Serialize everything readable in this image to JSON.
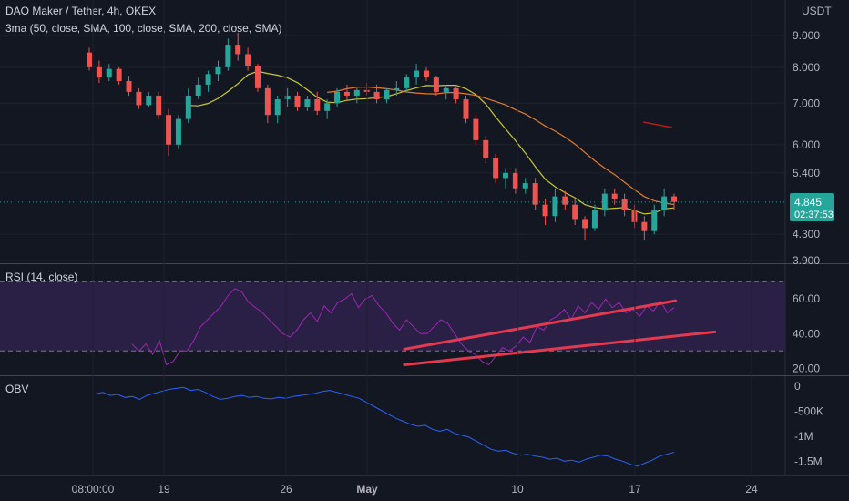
{
  "header": {
    "title": "DAO Maker / Tether, 4h, OKEX",
    "indicator": "3ma (50, close, SMA, 100, close, SMA, 200, close, SMA)",
    "currency": "USDT"
  },
  "badge": {
    "price": "4.845",
    "countdown": "02:37:53"
  },
  "panes": {
    "rsi_label": "RSI (14, close)",
    "obv_label": "OBV"
  },
  "colors": {
    "background": "#131722",
    "candle_up": "#26a69a",
    "candle_down": "#ef5350",
    "ma50": "#c8c832",
    "ma100": "#e07b2e",
    "ma200": "#b71c1c",
    "rsi_line": "#9c27b0",
    "rsi_band": "#2a1f45",
    "trendline": "#e53950",
    "obv_line": "#2962ff",
    "badge": "#26a69a"
  },
  "chart_data": [
    {
      "type": "candlestick",
      "title": "DAO Maker / Tether, 4h, OKEX",
      "x_tick_labels": [
        "08:00:00",
        "19",
        "26",
        "May",
        "10",
        "17",
        "24"
      ],
      "y_tick_labels": [
        "9.000",
        "8.000",
        "7.000",
        "6.000",
        "5.400",
        "4.845",
        "4.300",
        "3.900"
      ],
      "y_scale": "log",
      "ylim": [
        3.9,
        9.6
      ],
      "last_price": 4.845,
      "candles": [
        {
          "o": 8.45,
          "h": 8.6,
          "l": 7.9,
          "c": 8.0
        },
        {
          "o": 8.0,
          "h": 8.2,
          "l": 7.55,
          "c": 7.7
        },
        {
          "o": 7.7,
          "h": 8.1,
          "l": 7.6,
          "c": 7.95
        },
        {
          "o": 7.95,
          "h": 8.0,
          "l": 7.5,
          "c": 7.6
        },
        {
          "o": 7.6,
          "h": 7.75,
          "l": 7.2,
          "c": 7.3
        },
        {
          "o": 7.3,
          "h": 7.4,
          "l": 6.85,
          "c": 6.95
        },
        {
          "o": 6.95,
          "h": 7.3,
          "l": 6.9,
          "c": 7.2
        },
        {
          "o": 7.2,
          "h": 7.3,
          "l": 6.6,
          "c": 6.7
        },
        {
          "o": 6.7,
          "h": 6.85,
          "l": 5.75,
          "c": 6.0
        },
        {
          "o": 6.0,
          "h": 6.7,
          "l": 5.9,
          "c": 6.6
        },
        {
          "o": 6.6,
          "h": 7.4,
          "l": 6.5,
          "c": 7.2
        },
        {
          "o": 7.2,
          "h": 7.7,
          "l": 7.1,
          "c": 7.5
        },
        {
          "o": 7.5,
          "h": 7.9,
          "l": 7.3,
          "c": 7.8
        },
        {
          "o": 7.8,
          "h": 8.2,
          "l": 7.6,
          "c": 8.0
        },
        {
          "o": 8.0,
          "h": 8.9,
          "l": 7.9,
          "c": 8.7
        },
        {
          "o": 8.7,
          "h": 9.1,
          "l": 8.2,
          "c": 8.4
        },
        {
          "o": 8.4,
          "h": 8.6,
          "l": 7.9,
          "c": 8.05
        },
        {
          "o": 8.05,
          "h": 8.1,
          "l": 7.3,
          "c": 7.4
        },
        {
          "o": 7.4,
          "h": 7.5,
          "l": 6.5,
          "c": 6.7
        },
        {
          "o": 6.7,
          "h": 7.2,
          "l": 6.5,
          "c": 7.1
        },
        {
          "o": 7.1,
          "h": 7.4,
          "l": 6.9,
          "c": 7.2
        },
        {
          "o": 7.2,
          "h": 7.3,
          "l": 6.8,
          "c": 6.9
        },
        {
          "o": 6.9,
          "h": 7.2,
          "l": 6.8,
          "c": 7.1
        },
        {
          "o": 7.1,
          "h": 7.3,
          "l": 6.7,
          "c": 6.8
        },
        {
          "o": 6.8,
          "h": 7.1,
          "l": 6.6,
          "c": 7.0
        },
        {
          "o": 7.0,
          "h": 7.4,
          "l": 6.9,
          "c": 7.3
        },
        {
          "o": 7.3,
          "h": 7.5,
          "l": 7.1,
          "c": 7.2
        },
        {
          "o": 7.2,
          "h": 7.4,
          "l": 7.0,
          "c": 7.35
        },
        {
          "o": 7.35,
          "h": 7.55,
          "l": 7.2,
          "c": 7.3
        },
        {
          "o": 7.3,
          "h": 7.5,
          "l": 7.0,
          "c": 7.1
        },
        {
          "o": 7.1,
          "h": 7.4,
          "l": 7.0,
          "c": 7.35
        },
        {
          "o": 7.35,
          "h": 7.6,
          "l": 7.2,
          "c": 7.4
        },
        {
          "o": 7.4,
          "h": 7.8,
          "l": 7.3,
          "c": 7.7
        },
        {
          "o": 7.7,
          "h": 8.1,
          "l": 7.5,
          "c": 7.9
        },
        {
          "o": 7.9,
          "h": 8.0,
          "l": 7.6,
          "c": 7.7
        },
        {
          "o": 7.7,
          "h": 7.75,
          "l": 7.2,
          "c": 7.3
        },
        {
          "o": 7.3,
          "h": 7.5,
          "l": 7.1,
          "c": 7.4
        },
        {
          "o": 7.4,
          "h": 7.45,
          "l": 7.0,
          "c": 7.1
        },
        {
          "o": 7.1,
          "h": 7.2,
          "l": 6.5,
          "c": 6.6
        },
        {
          "o": 6.6,
          "h": 6.7,
          "l": 6.0,
          "c": 6.1
        },
        {
          "o": 6.1,
          "h": 6.2,
          "l": 5.6,
          "c": 5.7
        },
        {
          "o": 5.7,
          "h": 5.8,
          "l": 5.2,
          "c": 5.3
        },
        {
          "o": 5.3,
          "h": 5.5,
          "l": 5.1,
          "c": 5.4
        },
        {
          "o": 5.4,
          "h": 5.5,
          "l": 5.0,
          "c": 5.1
        },
        {
          "o": 5.1,
          "h": 5.3,
          "l": 5.0,
          "c": 5.2
        },
        {
          "o": 5.2,
          "h": 5.3,
          "l": 4.7,
          "c": 4.8
        },
        {
          "o": 4.8,
          "h": 4.9,
          "l": 4.45,
          "c": 4.6
        },
        {
          "o": 4.6,
          "h": 5.1,
          "l": 4.5,
          "c": 4.95
        },
        {
          "o": 4.95,
          "h": 5.05,
          "l": 4.7,
          "c": 4.8
        },
        {
          "o": 4.8,
          "h": 4.9,
          "l": 4.45,
          "c": 4.55
        },
        {
          "o": 4.55,
          "h": 4.6,
          "l": 4.2,
          "c": 4.4
        },
        {
          "o": 4.4,
          "h": 4.8,
          "l": 4.35,
          "c": 4.7
        },
        {
          "o": 4.7,
          "h": 5.1,
          "l": 4.6,
          "c": 5.0
        },
        {
          "o": 5.0,
          "h": 5.1,
          "l": 4.8,
          "c": 4.9
        },
        {
          "o": 4.9,
          "h": 5.0,
          "l": 4.6,
          "c": 4.7
        },
        {
          "o": 4.7,
          "h": 4.8,
          "l": 4.4,
          "c": 4.5
        },
        {
          "o": 4.5,
          "h": 4.6,
          "l": 4.2,
          "c": 4.35
        },
        {
          "o": 4.35,
          "h": 4.8,
          "l": 4.3,
          "c": 4.7
        },
        {
          "o": 4.7,
          "h": 5.1,
          "l": 4.6,
          "c": 4.95
        },
        {
          "o": 4.95,
          "h": 5.0,
          "l": 4.7,
          "c": 4.85
        }
      ]
    },
    {
      "type": "line",
      "title": "RSI (14, close)",
      "y_tick_labels": [
        "60.00",
        "40.00",
        "20.00"
      ],
      "ylim": [
        17,
        78
      ],
      "band": [
        30,
        70
      ],
      "values": [
        34,
        30,
        34,
        28,
        36,
        22,
        24,
        30,
        30,
        36,
        44,
        48,
        52,
        56,
        62,
        66,
        64,
        58,
        55,
        52,
        48,
        44,
        40,
        38,
        42,
        48,
        52,
        47,
        56,
        52,
        58,
        60,
        63,
        55,
        60,
        62,
        56,
        52,
        46,
        42,
        48,
        44,
        40,
        40,
        44,
        48,
        46,
        40,
        34,
        30,
        28,
        24,
        22,
        27,
        32,
        30,
        33,
        38,
        35,
        44,
        42,
        48,
        50,
        54,
        48,
        56,
        52,
        58,
        54,
        60,
        55,
        58,
        52,
        54,
        50,
        56,
        53,
        59,
        52,
        55
      ],
      "trendlines": [
        {
          "x": [
            0.515,
            0.93
          ],
          "y": [
            31,
            59
          ]
        },
        {
          "x": [
            0.515,
            0.98
          ],
          "y": [
            22,
            41
          ]
        }
      ]
    },
    {
      "type": "line",
      "title": "OBV",
      "y_tick_labels": [
        "0",
        "-500K",
        "-1M",
        "-1.5M"
      ],
      "ylim": [
        -1750000,
        150000
      ],
      "values": [
        -150000,
        -120000,
        -180000,
        -160000,
        -220000,
        -200000,
        -260000,
        -180000,
        -140000,
        -100000,
        -60000,
        -40000,
        -20000,
        -80000,
        -60000,
        -120000,
        -200000,
        -260000,
        -240000,
        -200000,
        -180000,
        -220000,
        -200000,
        -240000,
        -250000,
        -220000,
        -240000,
        -200000,
        -180000,
        -160000,
        -140000,
        -100000,
        -80000,
        -120000,
        -160000,
        -200000,
        -240000,
        -320000,
        -400000,
        -480000,
        -560000,
        -640000,
        -700000,
        -760000,
        -800000,
        -780000,
        -860000,
        -900000,
        -860000,
        -940000,
        -980000,
        -1020000,
        -1100000,
        -1180000,
        -1260000,
        -1300000,
        -1280000,
        -1340000,
        -1380000,
        -1360000,
        -1400000,
        -1420000,
        -1460000,
        -1440000,
        -1500000,
        -1480000,
        -1520000,
        -1460000,
        -1420000,
        -1380000,
        -1400000,
        -1460000,
        -1500000,
        -1560000,
        -1600000,
        -1540000,
        -1480000,
        -1400000,
        -1360000,
        -1320000
      ]
    }
  ]
}
